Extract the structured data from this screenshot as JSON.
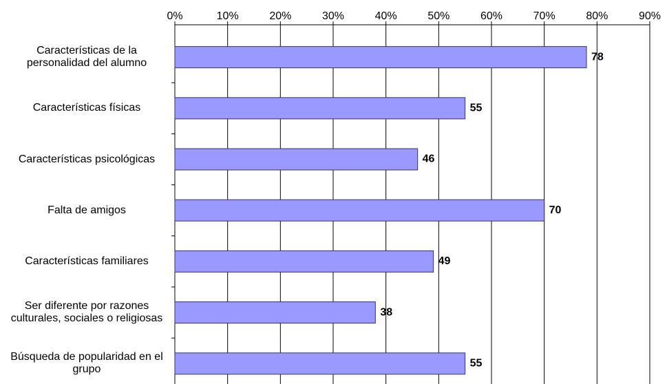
{
  "chart_data": {
    "type": "bar",
    "orientation": "horizontal",
    "categories": [
      "Características de la personalidad del alumno",
      "Características físicas",
      "Características psicológicas",
      "Falta de amigos",
      "Características familiares",
      "Ser diferente por razones culturales, sociales o religiosas",
      "Búsqueda de popularidad en el grupo"
    ],
    "values": [
      78,
      55,
      46,
      70,
      49,
      38,
      55
    ],
    "color": "#9999ff",
    "xlim": [
      0,
      90
    ],
    "xticks": [
      {
        "value": 0,
        "label": "0%"
      },
      {
        "value": 10,
        "label": "10%"
      },
      {
        "value": 20,
        "label": "20%"
      },
      {
        "value": 30,
        "label": "30%"
      },
      {
        "value": 40,
        "label": "40%"
      },
      {
        "value": 50,
        "label": "50%"
      },
      {
        "value": 60,
        "label": "60%"
      },
      {
        "value": 70,
        "label": "70%"
      },
      {
        "value": 80,
        "label": "80%"
      },
      {
        "value": 90,
        "label": "90%"
      }
    ],
    "grid": true
  }
}
